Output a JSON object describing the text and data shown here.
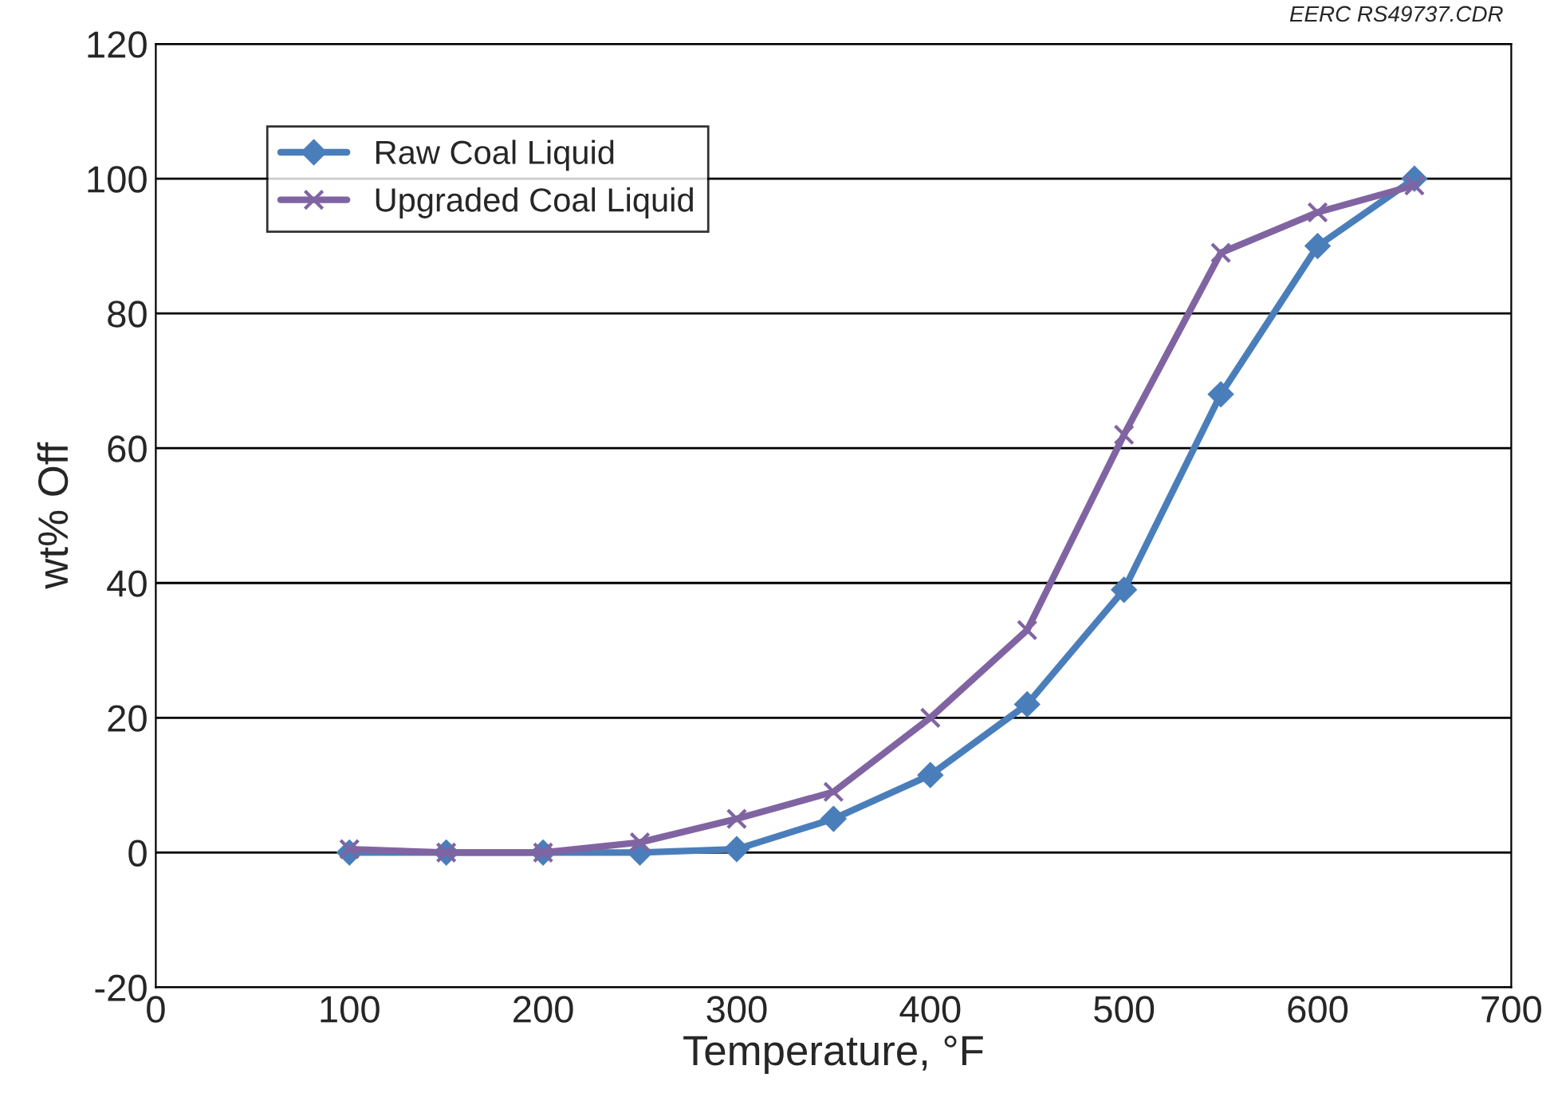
{
  "chart_data": {
    "type": "line",
    "xlabel": "Temperature, °F",
    "ylabel": "wt% Off",
    "annotations": [
      "EERC RS49737.CDR"
    ],
    "series": [
      {
        "name": "Raw Coal Liquid",
        "color": "#4a7ebb",
        "marker": "diamond",
        "x": [
          100,
          150,
          200,
          250,
          300,
          350,
          400,
          450,
          500,
          550,
          600,
          650
        ],
        "values": [
          0,
          0,
          0,
          0,
          0.5,
          5,
          11.5,
          22,
          39,
          68,
          90,
          100
        ]
      },
      {
        "name": "Upgraded Coal Liquid",
        "color": "#8064a2",
        "marker": "cross",
        "x": [
          100,
          150,
          200,
          250,
          300,
          350,
          400,
          450,
          500,
          550,
          600,
          650
        ],
        "values": [
          0.5,
          0,
          0,
          1.5,
          5,
          9,
          20,
          33,
          62,
          89,
          95,
          99
        ]
      }
    ],
    "xlim": [
      0,
      700
    ],
    "xticks": [
      0,
      100,
      200,
      300,
      400,
      500,
      600,
      700
    ],
    "ylim": [
      -20,
      120
    ],
    "yticks": [
      -20,
      0,
      20,
      40,
      60,
      80,
      100,
      120
    ],
    "grid": "y",
    "legend": "top left",
    "line_style": "solid"
  }
}
